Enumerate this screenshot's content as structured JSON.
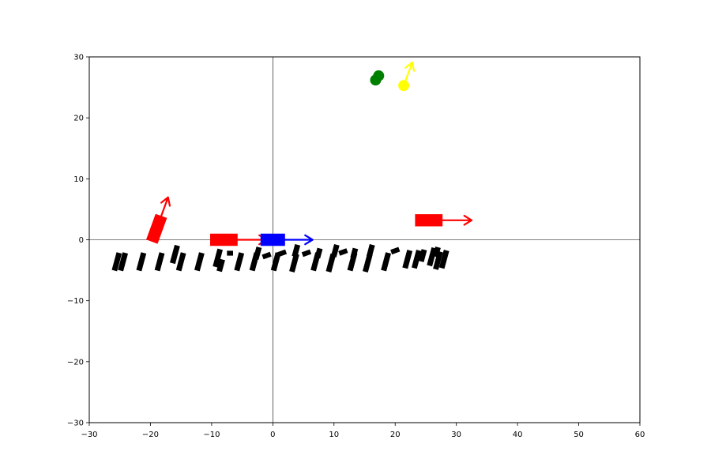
{
  "chart_data": {
    "type": "scatter",
    "title": "",
    "xlabel": "",
    "ylabel": "",
    "xlim": [
      -30,
      60
    ],
    "ylim": [
      -30,
      30
    ],
    "xticks": [
      -30,
      -20,
      -10,
      0,
      10,
      20,
      30,
      40,
      50,
      60
    ],
    "yticks": [
      -30,
      -20,
      -10,
      0,
      10,
      20,
      30
    ],
    "xtick_labels": [
      "−30",
      "−20",
      "−10",
      "0",
      "10",
      "20",
      "30",
      "40",
      "50",
      "60"
    ],
    "ytick_labels": [
      "−30",
      "−20",
      "−10",
      "0",
      "10",
      "20",
      "30"
    ],
    "grid": false,
    "reference_lines": {
      "x": 0,
      "y": 0
    },
    "vehicles": [
      {
        "x": -19,
        "y": 1.8,
        "heading_deg": 70,
        "length": 4.5,
        "width": 2.0,
        "color": "#ff0000",
        "arrow_length": 5.5,
        "arrow_color": "#ff0000"
      },
      {
        "x": -8,
        "y": 0,
        "heading_deg": 0,
        "length": 4.5,
        "width": 2.0,
        "color": "#ff0000",
        "arrow_length": 7,
        "arrow_color": "#ff0000"
      },
      {
        "x": 0,
        "y": 0,
        "heading_deg": 0,
        "length": 4.0,
        "width": 2.0,
        "color": "#0000ff",
        "arrow_length": 6.5,
        "arrow_color": "#0000ff"
      },
      {
        "x": 25.5,
        "y": 3.2,
        "heading_deg": 0,
        "length": 4.5,
        "width": 2.0,
        "color": "#ff0000",
        "arrow_length": 7,
        "arrow_color": "#ff0000"
      }
    ],
    "pedestrians": [
      {
        "x": 16.8,
        "y": 26.2,
        "color": "#008000",
        "radius": 0.9
      },
      {
        "x": 17.3,
        "y": 26.9,
        "color": "#008000",
        "radius": 0.9
      },
      {
        "x": 21.4,
        "y": 25.3,
        "color": "#ffff00",
        "radius": 0.9,
        "arrow_dx": 1.4,
        "arrow_dy": 3.8,
        "arrow_color": "#ffff00"
      }
    ],
    "obstacles": [
      {
        "x": -25.5,
        "y": -3.6,
        "heading_deg": 75,
        "length": 3.0,
        "width": 0.9
      },
      {
        "x": -24.5,
        "y": -3.6,
        "heading_deg": 75,
        "length": 3.0,
        "width": 0.9
      },
      {
        "x": -21.5,
        "y": -3.6,
        "heading_deg": 75,
        "length": 3.0,
        "width": 0.9
      },
      {
        "x": -18.5,
        "y": -3.6,
        "heading_deg": 75,
        "length": 3.0,
        "width": 0.9
      },
      {
        "x": -16.0,
        "y": -2.4,
        "heading_deg": 75,
        "length": 3.0,
        "width": 0.9
      },
      {
        "x": -15.0,
        "y": -3.6,
        "heading_deg": 75,
        "length": 3.0,
        "width": 0.9
      },
      {
        "x": -12.0,
        "y": -3.6,
        "heading_deg": 75,
        "length": 3.0,
        "width": 0.9
      },
      {
        "x": -9.0,
        "y": -3.0,
        "heading_deg": 75,
        "length": 3.0,
        "width": 0.9
      },
      {
        "x": -8.5,
        "y": -4.2,
        "heading_deg": 75,
        "length": 2.0,
        "width": 0.9
      },
      {
        "x": -7.0,
        "y": -2.2,
        "heading_deg": 0,
        "length": 1.0,
        "width": 0.8
      },
      {
        "x": -5.5,
        "y": -3.6,
        "heading_deg": 75,
        "length": 3.0,
        "width": 0.9
      },
      {
        "x": -3.0,
        "y": -3.6,
        "heading_deg": 75,
        "length": 3.0,
        "width": 0.9
      },
      {
        "x": -2.5,
        "y": -2.2,
        "heading_deg": 75,
        "length": 2.0,
        "width": 0.9
      },
      {
        "x": -1.0,
        "y": -2.6,
        "heading_deg": 20,
        "length": 1.4,
        "width": 0.8
      },
      {
        "x": 0.5,
        "y": -3.6,
        "heading_deg": 75,
        "length": 3.0,
        "width": 0.9
      },
      {
        "x": 1.5,
        "y": -2.2,
        "heading_deg": 20,
        "length": 1.4,
        "width": 0.8
      },
      {
        "x": 3.5,
        "y": -3.8,
        "heading_deg": 75,
        "length": 3.0,
        "width": 0.9
      },
      {
        "x": 3.8,
        "y": -1.8,
        "heading_deg": 75,
        "length": 2.0,
        "width": 0.9
      },
      {
        "x": 5.5,
        "y": -2.2,
        "heading_deg": 20,
        "length": 1.4,
        "width": 0.8
      },
      {
        "x": 7.0,
        "y": -3.6,
        "heading_deg": 75,
        "length": 3.0,
        "width": 0.9
      },
      {
        "x": 7.5,
        "y": -2.2,
        "heading_deg": 75,
        "length": 1.6,
        "width": 0.9
      },
      {
        "x": 9.5,
        "y": -3.8,
        "heading_deg": 75,
        "length": 3.0,
        "width": 0.9
      },
      {
        "x": 10.2,
        "y": -1.8,
        "heading_deg": 75,
        "length": 2.0,
        "width": 0.9
      },
      {
        "x": 11.5,
        "y": -2.0,
        "heading_deg": 20,
        "length": 1.4,
        "width": 0.8
      },
      {
        "x": 13.0,
        "y": -3.6,
        "heading_deg": 75,
        "length": 3.0,
        "width": 0.9
      },
      {
        "x": 13.3,
        "y": -2.2,
        "heading_deg": 75,
        "length": 1.6,
        "width": 0.9
      },
      {
        "x": 15.5,
        "y": -3.8,
        "heading_deg": 75,
        "length": 3.0,
        "width": 0.9
      },
      {
        "x": 16.0,
        "y": -1.8,
        "heading_deg": 75,
        "length": 2.0,
        "width": 0.9
      },
      {
        "x": 18.5,
        "y": -3.6,
        "heading_deg": 75,
        "length": 3.0,
        "width": 0.9
      },
      {
        "x": 20.0,
        "y": -1.8,
        "heading_deg": 20,
        "length": 1.4,
        "width": 0.8
      },
      {
        "x": 22.0,
        "y": -3.2,
        "heading_deg": 75,
        "length": 3.0,
        "width": 0.9
      },
      {
        "x": 23.5,
        "y": -3.2,
        "heading_deg": 75,
        "length": 3.0,
        "width": 0.9
      },
      {
        "x": 24.5,
        "y": -2.6,
        "heading_deg": 75,
        "length": 2.0,
        "width": 0.9
      },
      {
        "x": 26.0,
        "y": -2.8,
        "heading_deg": 75,
        "length": 3.0,
        "width": 0.9
      },
      {
        "x": 27.0,
        "y": -3.4,
        "heading_deg": 75,
        "length": 3.0,
        "width": 0.9
      },
      {
        "x": 28.0,
        "y": -3.2,
        "heading_deg": 75,
        "length": 3.0,
        "width": 0.9
      },
      {
        "x": 26.8,
        "y": -2.0,
        "heading_deg": 75,
        "length": 1.6,
        "width": 0.9
      }
    ]
  }
}
